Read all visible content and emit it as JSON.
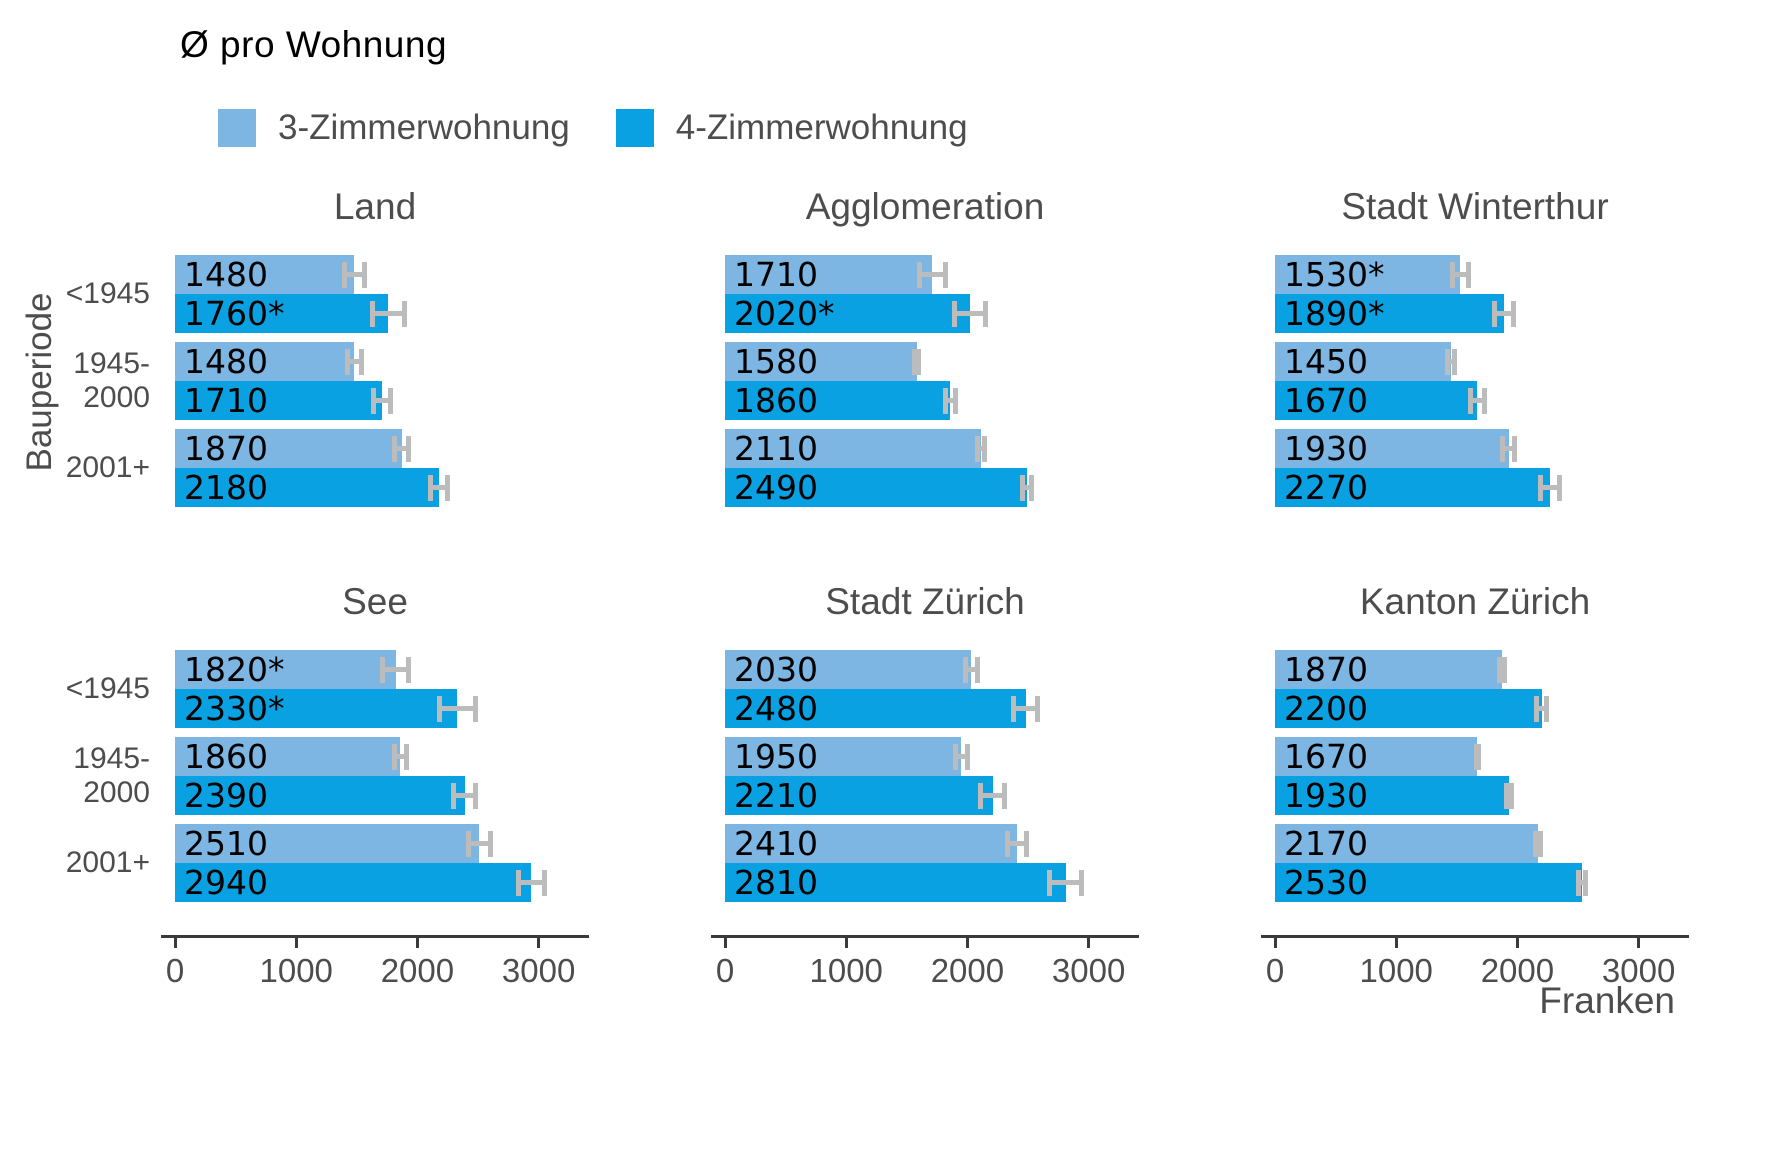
{
  "chart_data": {
    "type": "bar",
    "orientation": "horizontal",
    "title": "Ø pro Wohnung",
    "xlabel": "Franken",
    "ylabel": "Bauperiode",
    "xlim": [
      0,
      3300
    ],
    "x_ticks": [
      "0",
      "1000",
      "2000",
      "3000"
    ],
    "grid": false,
    "legend_position": "top-left",
    "categories": [
      "<1945",
      "1945-2000",
      "2001+"
    ],
    "category_display": [
      [
        "<1945"
      ],
      [
        "1945-",
        "2000"
      ],
      [
        "2001+"
      ]
    ],
    "series": [
      {
        "name": "3-Zimmerwohnung",
        "color": "#7DB5E3"
      },
      {
        "name": "4-Zimmerwohnung",
        "color": "#0AA1E2"
      }
    ],
    "error_bar_color": "#bcbcbc",
    "axis_color": "#3a3a3a",
    "facets": [
      {
        "title": "Land",
        "groups": [
          {
            "category": "<1945",
            "bars": [
              {
                "series": "3-Zimmerwohnung",
                "label": "1480",
                "value": 1480,
                "err": 100
              },
              {
                "series": "4-Zimmerwohnung",
                "label": "1760*",
                "value": 1760,
                "err": 150
              }
            ]
          },
          {
            "category": "1945-2000",
            "bars": [
              {
                "series": "3-Zimmerwohnung",
                "label": "1480",
                "value": 1480,
                "err": 80
              },
              {
                "series": "4-Zimmerwohnung",
                "label": "1710",
                "value": 1710,
                "err": 90
              }
            ]
          },
          {
            "category": "2001+",
            "bars": [
              {
                "series": "3-Zimmerwohnung",
                "label": "1870",
                "value": 1870,
                "err": 80
              },
              {
                "series": "4-Zimmerwohnung",
                "label": "2180",
                "value": 2180,
                "err": 90
              }
            ]
          }
        ]
      },
      {
        "title": "Agglomeration",
        "groups": [
          {
            "category": "<1945",
            "bars": [
              {
                "series": "3-Zimmerwohnung",
                "label": "1710",
                "value": 1710,
                "err": 130
              },
              {
                "series": "4-Zimmerwohnung",
                "label": "2020*",
                "value": 2020,
                "err": 150
              }
            ]
          },
          {
            "category": "1945-2000",
            "bars": [
              {
                "series": "3-Zimmerwohnung",
                "label": "1580",
                "value": 1580,
                "err": 40
              },
              {
                "series": "4-Zimmerwohnung",
                "label": "1860",
                "value": 1860,
                "err": 60
              }
            ]
          },
          {
            "category": "2001+",
            "bars": [
              {
                "series": "3-Zimmerwohnung",
                "label": "2110",
                "value": 2110,
                "err": 50
              },
              {
                "series": "4-Zimmerwohnung",
                "label": "2490",
                "value": 2490,
                "err": 60
              }
            ]
          }
        ]
      },
      {
        "title": "Stadt Winterthur",
        "groups": [
          {
            "category": "<1945",
            "bars": [
              {
                "series": "3-Zimmerwohnung",
                "label": "1530*",
                "value": 1530,
                "err": 90
              },
              {
                "series": "4-Zimmerwohnung",
                "label": "1890*",
                "value": 1890,
                "err": 100
              }
            ]
          },
          {
            "category": "1945-2000",
            "bars": [
              {
                "series": "3-Zimmerwohnung",
                "label": "1450",
                "value": 1450,
                "err": 50
              },
              {
                "series": "4-Zimmerwohnung",
                "label": "1670",
                "value": 1670,
                "err": 80
              }
            ]
          },
          {
            "category": "2001+",
            "bars": [
              {
                "series": "3-Zimmerwohnung",
                "label": "1930",
                "value": 1930,
                "err": 70
              },
              {
                "series": "4-Zimmerwohnung",
                "label": "2270",
                "value": 2270,
                "err": 100
              }
            ]
          }
        ]
      },
      {
        "title": "See",
        "groups": [
          {
            "category": "<1945",
            "bars": [
              {
                "series": "3-Zimmerwohnung",
                "label": "1820*",
                "value": 1820,
                "err": 130
              },
              {
                "series": "4-Zimmerwohnung",
                "label": "2330*",
                "value": 2330,
                "err": 170
              }
            ]
          },
          {
            "category": "1945-2000",
            "bars": [
              {
                "series": "3-Zimmerwohnung",
                "label": "1860",
                "value": 1860,
                "err": 70
              },
              {
                "series": "4-Zimmerwohnung",
                "label": "2390",
                "value": 2390,
                "err": 110
              }
            ]
          },
          {
            "category": "2001+",
            "bars": [
              {
                "series": "3-Zimmerwohnung",
                "label": "2510",
                "value": 2510,
                "err": 110
              },
              {
                "series": "4-Zimmerwohnung",
                "label": "2940",
                "value": 2940,
                "err": 130
              }
            ]
          }
        ]
      },
      {
        "title": "Stadt Zürich",
        "groups": [
          {
            "category": "<1945",
            "bars": [
              {
                "series": "3-Zimmerwohnung",
                "label": "2030",
                "value": 2030,
                "err": 70
              },
              {
                "series": "4-Zimmerwohnung",
                "label": "2480",
                "value": 2480,
                "err": 120
              }
            ]
          },
          {
            "category": "1945-2000",
            "bars": [
              {
                "series": "3-Zimmerwohnung",
                "label": "1950",
                "value": 1950,
                "err": 70
              },
              {
                "series": "4-Zimmerwohnung",
                "label": "2210",
                "value": 2210,
                "err": 120
              }
            ]
          },
          {
            "category": "2001+",
            "bars": [
              {
                "series": "3-Zimmerwohnung",
                "label": "2410",
                "value": 2410,
                "err": 100
              },
              {
                "series": "4-Zimmerwohnung",
                "label": "2810",
                "value": 2810,
                "err": 150
              }
            ]
          }
        ]
      },
      {
        "title": "Kanton Zürich",
        "groups": [
          {
            "category": "<1945",
            "bars": [
              {
                "series": "3-Zimmerwohnung",
                "label": "1870",
                "value": 1870,
                "err": 40
              },
              {
                "series": "4-Zimmerwohnung",
                "label": "2200",
                "value": 2200,
                "err": 60
              }
            ]
          },
          {
            "category": "1945-2000",
            "bars": [
              {
                "series": "3-Zimmerwohnung",
                "label": "1670",
                "value": 1670,
                "err": 30
              },
              {
                "series": "4-Zimmerwohnung",
                "label": "1930",
                "value": 1930,
                "err": 40
              }
            ]
          },
          {
            "category": "2001+",
            "bars": [
              {
                "series": "3-Zimmerwohnung",
                "label": "2170",
                "value": 2170,
                "err": 40
              },
              {
                "series": "4-Zimmerwohnung",
                "label": "2530",
                "value": 2530,
                "err": 50
              }
            ]
          }
        ]
      }
    ]
  }
}
